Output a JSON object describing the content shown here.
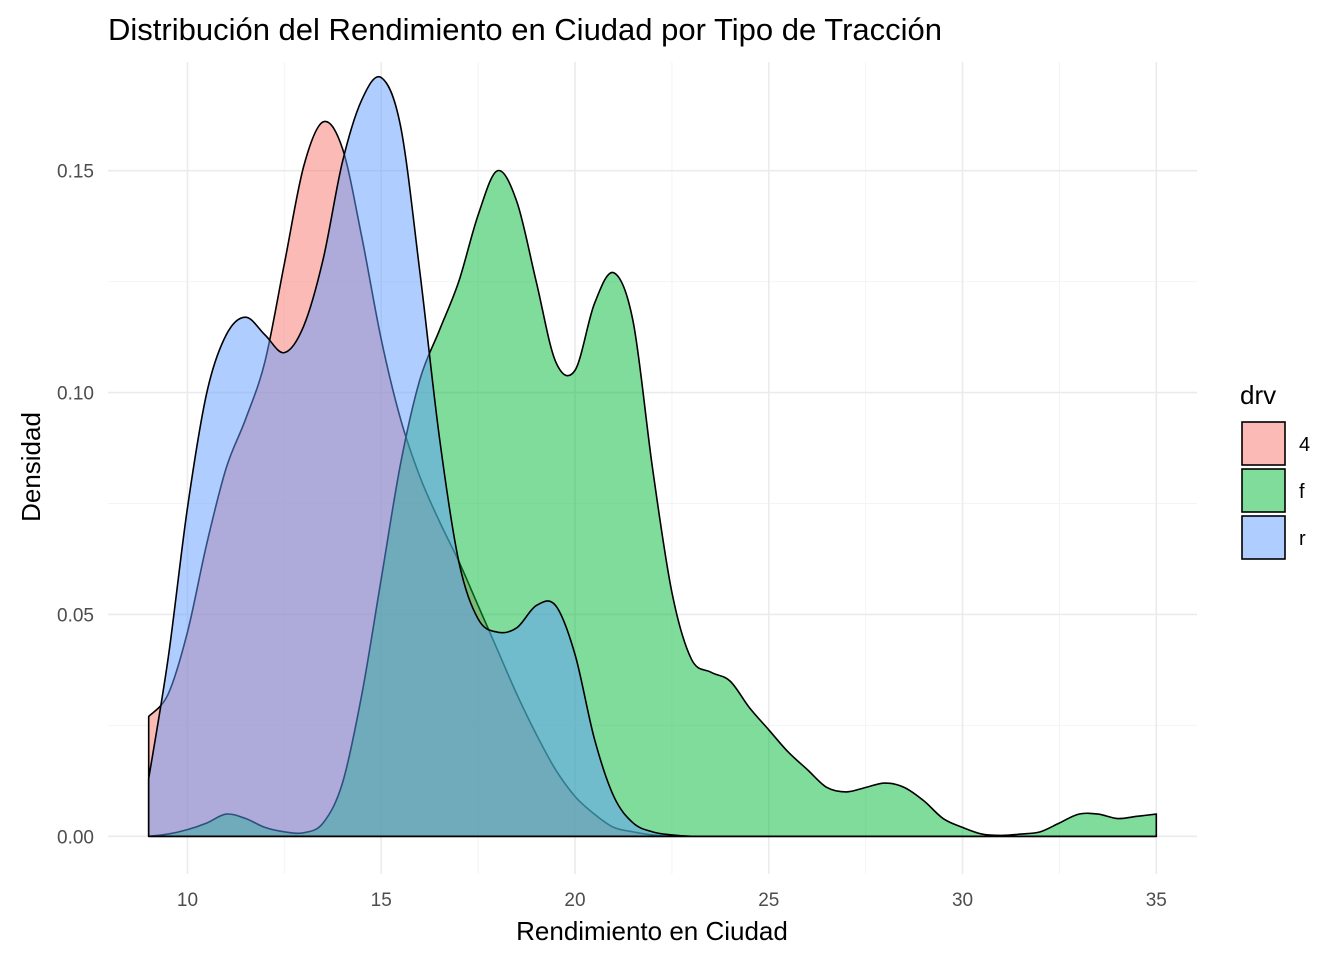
{
  "chart_data": {
    "type": "area",
    "title": "Distribución del Rendimiento en Ciudad por Tipo de Tracción",
    "xlabel": "Rendimiento en Ciudad",
    "ylabel": "Densidad",
    "xlim": [
      7.95,
      36.05
    ],
    "ylim": [
      -0.0085,
      0.1745
    ],
    "x_ticks": [
      10,
      15,
      20,
      25,
      30,
      35
    ],
    "x_tick_labels": [
      "10",
      "15",
      "20",
      "25",
      "30",
      "35"
    ],
    "y_ticks": [
      0,
      0.05,
      0.1,
      0.15
    ],
    "y_tick_labels": [
      "0.00",
      "0.05",
      "0.10",
      "0.15"
    ],
    "grid": true,
    "legend": {
      "title": "drv",
      "position": "right"
    },
    "series": [
      {
        "name": "4",
        "color": "#F8766D",
        "points": [
          [
            9,
            0.027
          ],
          [
            9.5,
            0.032
          ],
          [
            10,
            0.046
          ],
          [
            10.5,
            0.066
          ],
          [
            11,
            0.083
          ],
          [
            11.5,
            0.094
          ],
          [
            12,
            0.107
          ],
          [
            12.5,
            0.129
          ],
          [
            13,
            0.151
          ],
          [
            13.5,
            0.161
          ],
          [
            14,
            0.155
          ],
          [
            14.5,
            0.135
          ],
          [
            15,
            0.112
          ],
          [
            15.5,
            0.094
          ],
          [
            16,
            0.081
          ],
          [
            16.5,
            0.071
          ],
          [
            17,
            0.062
          ],
          [
            17.5,
            0.052
          ],
          [
            18,
            0.042
          ],
          [
            18.5,
            0.032
          ],
          [
            19,
            0.023
          ],
          [
            19.5,
            0.015
          ],
          [
            20,
            0.009
          ],
          [
            20.5,
            0.005
          ],
          [
            21,
            0.002
          ],
          [
            21.5,
            0.001
          ],
          [
            22,
            0.0003
          ],
          [
            22.5,
            0.0001
          ],
          [
            23,
            0
          ],
          [
            24,
            0
          ],
          [
            25,
            0
          ],
          [
            26,
            0
          ],
          [
            27,
            0
          ],
          [
            28,
            0
          ],
          [
            29,
            0
          ],
          [
            30,
            0
          ],
          [
            31,
            0
          ],
          [
            32,
            0
          ],
          [
            33,
            0
          ],
          [
            34,
            0
          ],
          [
            35,
            0
          ]
        ]
      },
      {
        "name": "f",
        "color": "#00BA38",
        "points": [
          [
            9,
            0
          ],
          [
            9.5,
            0.0005
          ],
          [
            10,
            0.0015
          ],
          [
            10.5,
            0.003
          ],
          [
            11,
            0.005
          ],
          [
            11.5,
            0.004
          ],
          [
            12,
            0.002
          ],
          [
            12.5,
            0.001
          ],
          [
            13,
            0.0008
          ],
          [
            13.5,
            0.003
          ],
          [
            14,
            0.012
          ],
          [
            14.5,
            0.032
          ],
          [
            15,
            0.058
          ],
          [
            15.5,
            0.084
          ],
          [
            16,
            0.103
          ],
          [
            16.5,
            0.114
          ],
          [
            17,
            0.125
          ],
          [
            17.5,
            0.14
          ],
          [
            18,
            0.15
          ],
          [
            18.5,
            0.143
          ],
          [
            19,
            0.125
          ],
          [
            19.5,
            0.107
          ],
          [
            20,
            0.105
          ],
          [
            20.5,
            0.12
          ],
          [
            21,
            0.127
          ],
          [
            21.5,
            0.116
          ],
          [
            22,
            0.083
          ],
          [
            22.5,
            0.055
          ],
          [
            23,
            0.04
          ],
          [
            23.5,
            0.037
          ],
          [
            24,
            0.035
          ],
          [
            24.5,
            0.029
          ],
          [
            25,
            0.024
          ],
          [
            25.5,
            0.019
          ],
          [
            26,
            0.015
          ],
          [
            26.5,
            0.011
          ],
          [
            27,
            0.01
          ],
          [
            27.5,
            0.011
          ],
          [
            28,
            0.012
          ],
          [
            28.5,
            0.011
          ],
          [
            29,
            0.008
          ],
          [
            29.5,
            0.004
          ],
          [
            30,
            0.002
          ],
          [
            30.5,
            0.0005
          ],
          [
            31,
            0.0002
          ],
          [
            31.5,
            0.0005
          ],
          [
            32,
            0.001
          ],
          [
            32.5,
            0.003
          ],
          [
            33,
            0.005
          ],
          [
            33.5,
            0.005
          ],
          [
            34,
            0.004
          ],
          [
            34.5,
            0.0045
          ],
          [
            35,
            0.005
          ]
        ]
      },
      {
        "name": "r",
        "color": "#619CFF",
        "points": [
          [
            9,
            0.013
          ],
          [
            9.5,
            0.04
          ],
          [
            10,
            0.074
          ],
          [
            10.5,
            0.1
          ],
          [
            11,
            0.113
          ],
          [
            11.5,
            0.117
          ],
          [
            12,
            0.113
          ],
          [
            12.5,
            0.109
          ],
          [
            13,
            0.115
          ],
          [
            13.5,
            0.13
          ],
          [
            14,
            0.152
          ],
          [
            14.5,
            0.166
          ],
          [
            15,
            0.171
          ],
          [
            15.5,
            0.16
          ],
          [
            16,
            0.127
          ],
          [
            16.5,
            0.09
          ],
          [
            17,
            0.062
          ],
          [
            17.5,
            0.049
          ],
          [
            18,
            0.046
          ],
          [
            18.5,
            0.047
          ],
          [
            19,
            0.052
          ],
          [
            19.5,
            0.052
          ],
          [
            20,
            0.041
          ],
          [
            20.5,
            0.022
          ],
          [
            21,
            0.009
          ],
          [
            21.5,
            0.003
          ],
          [
            22,
            0.001
          ],
          [
            22.5,
            0.0003
          ],
          [
            23,
            0
          ],
          [
            24,
            0
          ],
          [
            25,
            0
          ],
          [
            26,
            0
          ],
          [
            27,
            0
          ],
          [
            28,
            0
          ],
          [
            29,
            0
          ],
          [
            30,
            0
          ],
          [
            31,
            0
          ],
          [
            32,
            0
          ],
          [
            33,
            0
          ],
          [
            34,
            0
          ],
          [
            35,
            0
          ]
        ]
      }
    ]
  }
}
